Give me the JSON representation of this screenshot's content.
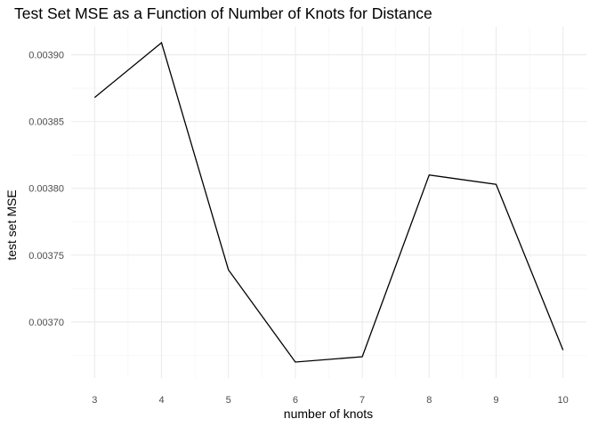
{
  "chart_data": {
    "type": "line",
    "title": "Test Set MSE as a Function of Number of Knots for Distance",
    "xlabel": "number of knots",
    "ylabel": "test set MSE",
    "x": [
      3,
      4,
      5,
      6,
      7,
      8,
      9,
      10
    ],
    "y": [
      0.003868,
      0.003909,
      0.003739,
      0.00367,
      0.003674,
      0.00381,
      0.003803,
      0.003679
    ],
    "xlim": [
      2.65,
      10.35
    ],
    "ylim": [
      0.003658,
      0.003921
    ],
    "x_ticks": [
      {
        "value": 3,
        "label": "3"
      },
      {
        "value": 4,
        "label": "4"
      },
      {
        "value": 5,
        "label": "5"
      },
      {
        "value": 6,
        "label": "6"
      },
      {
        "value": 7,
        "label": "7"
      },
      {
        "value": 8,
        "label": "8"
      },
      {
        "value": 9,
        "label": "9"
      },
      {
        "value": 10,
        "label": "10"
      }
    ],
    "y_ticks": [
      {
        "value": 0.0037,
        "label": "0.00370"
      },
      {
        "value": 0.00375,
        "label": "0.00375"
      },
      {
        "value": 0.0038,
        "label": "0.00380"
      },
      {
        "value": 0.00385,
        "label": "0.00385"
      },
      {
        "value": 0.0039,
        "label": "0.00390"
      }
    ],
    "grid": true,
    "legend": "none",
    "line_color": "#000000",
    "grid_color": "#ebebeb"
  }
}
